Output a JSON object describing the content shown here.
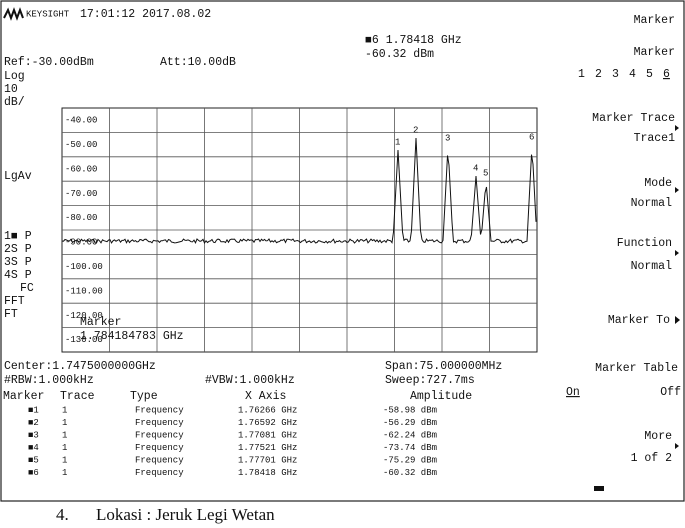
{
  "header": {
    "brand": "KEYSIGHT",
    "datetime": "17:01:12 2017.08.02"
  },
  "settings": {
    "ref": "Ref:-30.00dBm",
    "att": "Att:10.00dB",
    "scale": [
      "Log",
      "10",
      "dB/"
    ],
    "lgav": "LgAv",
    "trace_status": [
      "1■ P",
      "2S P",
      "3S P",
      "4S P"
    ],
    "fc": "FC",
    "fft": "FFT",
    "ft": "FT"
  },
  "active_marker": {
    "frequency": "■6 1.78418 GHz",
    "amplitude": "-60.32 dBm"
  },
  "grid_labels": [
    "-40.00",
    "-50.00",
    "-60.00",
    "-70.00",
    "-80.00",
    "-90.00",
    "-100.00",
    "-110.00",
    "-120.00",
    "-130.00"
  ],
  "trace_markers": [
    "1",
    "2",
    "3",
    "4",
    "5",
    "6"
  ],
  "marker_popup": {
    "title": "Marker",
    "value": "1.784184783 GHz"
  },
  "footer": {
    "center": "Center:1.7475000000GHz",
    "rbw": "#RBW:1.000kHz",
    "vbw": "#VBW:1.000kHz",
    "span": "Span:75.000000MHz",
    "sweep": "Sweep:727.7ms"
  },
  "marker_table": {
    "columns": [
      "Marker",
      "Trace",
      "Type",
      "X Axis",
      "Amplitude"
    ],
    "rows": [
      [
        "■1",
        "1",
        "Frequency",
        "1.76266 GHz",
        "-58.98 dBm"
      ],
      [
        "■2",
        "1",
        "Frequency",
        "1.76592 GHz",
        "-56.29 dBm"
      ],
      [
        "■3",
        "1",
        "Frequency",
        "1.77081 GHz",
        "-62.24 dBm"
      ],
      [
        "■4",
        "1",
        "Frequency",
        "1.77521 GHz",
        "-73.74 dBm"
      ],
      [
        "■5",
        "1",
        "Frequency",
        "1.77701 GHz",
        "-75.29 dBm"
      ],
      [
        "■6",
        "1",
        "Frequency",
        "1.78418 GHz",
        "-60.32 dBm"
      ]
    ]
  },
  "softkeys": {
    "title": "Marker",
    "marker": {
      "label": "Marker",
      "numbers": [
        "1",
        "2",
        "3",
        "4",
        "5",
        "6"
      ]
    },
    "marker_trace": {
      "label": "Marker Trace",
      "value": "Trace1"
    },
    "mode": {
      "label": "Mode",
      "value": "Normal"
    },
    "function": {
      "label": "Function",
      "value": "Normal"
    },
    "marker_to": {
      "label": "Marker To"
    },
    "marker_table": {
      "label": "Marker Table",
      "on": "On",
      "off": "Off"
    },
    "more": {
      "label": "More",
      "value": "1 of 2"
    }
  },
  "caption": {
    "number": "4.",
    "text": "Lokasi : Jeruk Legi Wetan"
  }
}
